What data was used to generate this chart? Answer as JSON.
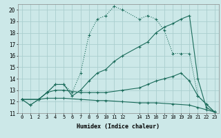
{
  "xlabel": "Humidex (Indice chaleur)",
  "bg_color": "#cce8e8",
  "grid_color": "#aacece",
  "line_color": "#1a6b5a",
  "xlim": [
    -0.5,
    23.5
  ],
  "ylim": [
    11,
    20.5
  ],
  "xticks": [
    0,
    1,
    2,
    3,
    4,
    5,
    6,
    7,
    8,
    9,
    10,
    11,
    12,
    14,
    15,
    16,
    17,
    18,
    19,
    20,
    21,
    22,
    23
  ],
  "yticks": [
    11,
    12,
    13,
    14,
    15,
    16,
    17,
    18,
    19,
    20
  ],
  "line1_x": [
    0,
    1,
    2,
    3,
    4,
    5,
    6,
    7,
    8,
    9,
    10,
    11,
    12,
    14,
    15,
    16,
    17,
    18,
    19,
    20,
    21,
    22,
    23
  ],
  "line1_y": [
    12.2,
    11.7,
    12.2,
    12.8,
    13.5,
    13.5,
    12.8,
    14.5,
    17.8,
    19.2,
    19.5,
    20.3,
    20.0,
    19.2,
    19.5,
    19.2,
    18.2,
    16.2,
    16.2,
    16.2,
    12.5,
    11.8,
    11.1
  ],
  "line2_x": [
    0,
    1,
    2,
    3,
    4,
    5,
    6,
    7,
    8,
    9,
    10,
    11,
    12,
    14,
    15,
    16,
    17,
    18,
    19,
    20,
    21,
    22,
    23
  ],
  "line2_y": [
    12.2,
    11.7,
    12.2,
    12.8,
    13.5,
    13.5,
    12.5,
    13.0,
    13.8,
    14.5,
    14.8,
    15.5,
    16.0,
    16.8,
    17.2,
    18.0,
    18.5,
    18.8,
    19.2,
    19.5,
    14.0,
    11.5,
    11.1
  ],
  "line3_x": [
    0,
    2,
    3,
    4,
    5,
    7,
    8,
    9,
    10,
    12,
    14,
    15,
    16,
    17,
    18,
    19,
    20,
    21,
    22,
    23
  ],
  "line3_y": [
    12.2,
    12.2,
    12.8,
    13.0,
    13.0,
    12.8,
    12.8,
    12.8,
    12.8,
    13.0,
    13.2,
    13.5,
    13.8,
    14.0,
    14.2,
    14.5,
    13.8,
    12.5,
    11.8,
    11.1
  ],
  "line4_x": [
    0,
    2,
    3,
    4,
    5,
    7,
    9,
    10,
    12,
    14,
    15,
    16,
    18,
    20,
    21,
    22,
    23
  ],
  "line4_y": [
    12.2,
    12.2,
    12.3,
    12.3,
    12.3,
    12.2,
    12.1,
    12.1,
    12.0,
    11.9,
    11.9,
    11.9,
    11.8,
    11.7,
    11.5,
    11.3,
    11.1
  ]
}
